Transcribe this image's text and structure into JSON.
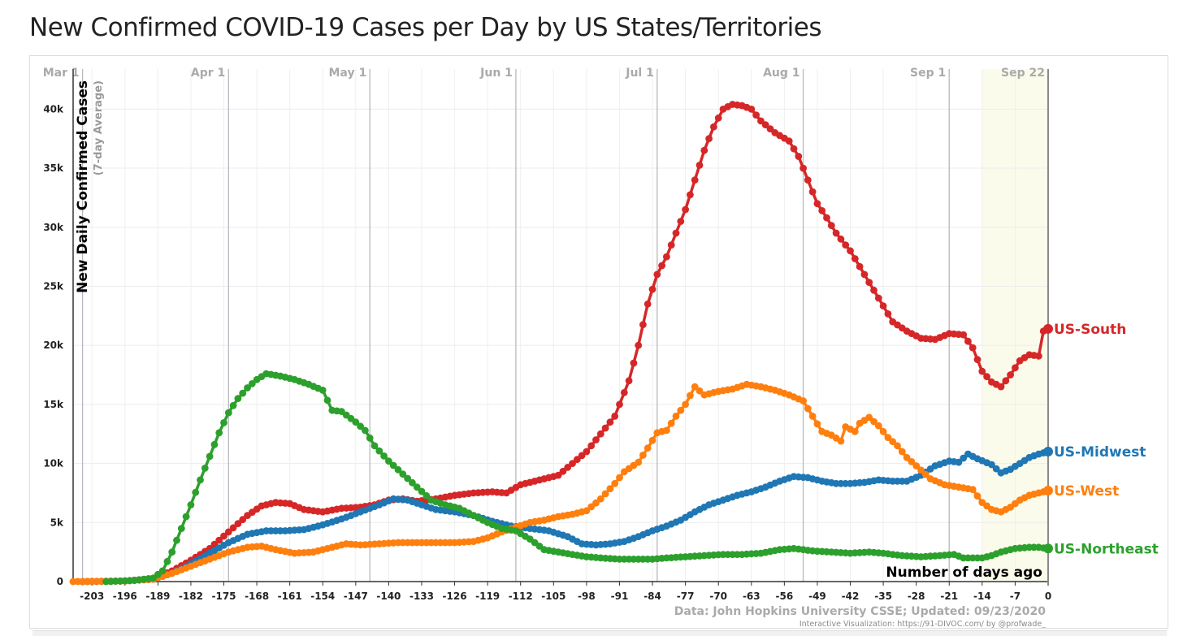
{
  "title": "New Confirmed COVID-19 Cases per Day by US States/Territories",
  "chart_data": {
    "type": "line",
    "ylabel": "New Daily Confirmed Cases",
    "ylabel_sub": "(7-day Average)",
    "xlabel": "Number of days ago",
    "xlim": [
      -207,
      0
    ],
    "ylim": [
      0,
      42500
    ],
    "grid": true,
    "x_ticks": [
      -203,
      -196,
      -189,
      -182,
      -175,
      -168,
      -161,
      -154,
      -147,
      -140,
      -133,
      -126,
      -119,
      -112,
      -105,
      -98,
      -91,
      -84,
      -77,
      -70,
      -63,
      -56,
      -49,
      -42,
      -35,
      -28,
      -21,
      -14,
      -7,
      0
    ],
    "y_ticks": [
      0,
      5000,
      10000,
      15000,
      20000,
      25000,
      30000,
      35000,
      40000
    ],
    "y_tick_labels": [
      "0",
      "5k",
      "10k",
      "15k",
      "20k",
      "25k",
      "30k",
      "35k",
      "40k"
    ],
    "date_markers": [
      {
        "label": "Mar 1",
        "x": -205
      },
      {
        "label": "Apr 1",
        "x": -174
      },
      {
        "label": "May 1",
        "x": -144
      },
      {
        "label": "Jun 1",
        "x": -113
      },
      {
        "label": "Jul 1",
        "x": -83
      },
      {
        "label": "Aug 1",
        "x": -52
      },
      {
        "label": "Sep 1",
        "x": -21
      },
      {
        "label": "Sep 22",
        "x": 0
      }
    ],
    "highlight_range": [
      -14,
      0
    ],
    "source_text": "Data: John Hopkins University CSSE; Updated: 09/23/2020",
    "credit_text": "Interactive Visualization: https://91-DIVOC.com/ by @profwade_",
    "series": [
      {
        "name": "US-South",
        "color": "#d62728",
        "points": [
          [
            -205,
            0
          ],
          [
            -196,
            50
          ],
          [
            -190,
            250
          ],
          [
            -186,
            900
          ],
          [
            -182,
            1800
          ],
          [
            -178,
            2800
          ],
          [
            -174,
            4200
          ],
          [
            -170,
            5600
          ],
          [
            -167,
            6400
          ],
          [
            -164,
            6700
          ],
          [
            -161,
            6600
          ],
          [
            -158,
            6100
          ],
          [
            -154,
            5900
          ],
          [
            -150,
            6200
          ],
          [
            -146,
            6300
          ],
          [
            -143,
            6500
          ],
          [
            -140,
            6900
          ],
          [
            -137,
            7000
          ],
          [
            -134,
            6800
          ],
          [
            -130,
            7000
          ],
          [
            -126,
            7300
          ],
          [
            -122,
            7500
          ],
          [
            -118,
            7600
          ],
          [
            -115,
            7500
          ],
          [
            -112,
            8200
          ],
          [
            -108,
            8600
          ],
          [
            -104,
            9000
          ],
          [
            -101,
            10000
          ],
          [
            -98,
            11000
          ],
          [
            -95,
            12500
          ],
          [
            -92,
            14000
          ],
          [
            -89,
            17000
          ],
          [
            -87,
            20000
          ],
          [
            -85,
            23500
          ],
          [
            -83,
            26000
          ],
          [
            -81,
            27500
          ],
          [
            -79,
            29500
          ],
          [
            -77,
            31500
          ],
          [
            -75,
            34000
          ],
          [
            -73,
            36500
          ],
          [
            -71,
            38500
          ],
          [
            -69,
            40000
          ],
          [
            -67,
            40400
          ],
          [
            -65,
            40300
          ],
          [
            -63,
            40000
          ],
          [
            -61,
            39000
          ],
          [
            -58,
            38000
          ],
          [
            -55,
            37300
          ],
          [
            -53,
            36000
          ],
          [
            -51,
            34000
          ],
          [
            -49,
            32000
          ],
          [
            -47,
            30800
          ],
          [
            -45,
            29500
          ],
          [
            -42,
            28000
          ],
          [
            -39,
            26000
          ],
          [
            -36,
            24000
          ],
          [
            -33,
            22000
          ],
          [
            -30,
            21200
          ],
          [
            -27,
            20600
          ],
          [
            -24,
            20500
          ],
          [
            -21,
            21000
          ],
          [
            -18,
            20900
          ],
          [
            -16,
            19800
          ],
          [
            -14,
            17800
          ],
          [
            -12,
            16900
          ],
          [
            -10,
            16500
          ],
          [
            -8,
            17500
          ],
          [
            -6,
            18700
          ],
          [
            -4,
            19200
          ],
          [
            -2,
            19100
          ],
          [
            -1,
            21200
          ],
          [
            0,
            21400
          ]
        ]
      },
      {
        "name": "US-Midwest",
        "color": "#1f77b4",
        "points": [
          [
            -205,
            0
          ],
          [
            -196,
            50
          ],
          [
            -190,
            200
          ],
          [
            -186,
            700
          ],
          [
            -182,
            1500
          ],
          [
            -178,
            2400
          ],
          [
            -174,
            3300
          ],
          [
            -170,
            4000
          ],
          [
            -166,
            4300
          ],
          [
            -162,
            4300
          ],
          [
            -158,
            4400
          ],
          [
            -154,
            4800
          ],
          [
            -150,
            5300
          ],
          [
            -146,
            5900
          ],
          [
            -142,
            6500
          ],
          [
            -139,
            7000
          ],
          [
            -136,
            6900
          ],
          [
            -133,
            6500
          ],
          [
            -130,
            6100
          ],
          [
            -126,
            5900
          ],
          [
            -122,
            5600
          ],
          [
            -118,
            5100
          ],
          [
            -114,
            4700
          ],
          [
            -110,
            4500
          ],
          [
            -106,
            4300
          ],
          [
            -102,
            3800
          ],
          [
            -99,
            3200
          ],
          [
            -96,
            3100
          ],
          [
            -93,
            3200
          ],
          [
            -90,
            3400
          ],
          [
            -87,
            3800
          ],
          [
            -84,
            4300
          ],
          [
            -81,
            4700
          ],
          [
            -78,
            5200
          ],
          [
            -75,
            5900
          ],
          [
            -72,
            6500
          ],
          [
            -69,
            6900
          ],
          [
            -66,
            7300
          ],
          [
            -63,
            7600
          ],
          [
            -60,
            8000
          ],
          [
            -57,
            8500
          ],
          [
            -54,
            8900
          ],
          [
            -51,
            8800
          ],
          [
            -48,
            8500
          ],
          [
            -45,
            8300
          ],
          [
            -42,
            8300
          ],
          [
            -39,
            8400
          ],
          [
            -36,
            8600
          ],
          [
            -33,
            8500
          ],
          [
            -30,
            8500
          ],
          [
            -27,
            9000
          ],
          [
            -24,
            9800
          ],
          [
            -21,
            10200
          ],
          [
            -19,
            10100
          ],
          [
            -17,
            10800
          ],
          [
            -15,
            10400
          ],
          [
            -12,
            9900
          ],
          [
            -10,
            9200
          ],
          [
            -8,
            9500
          ],
          [
            -6,
            10000
          ],
          [
            -4,
            10500
          ],
          [
            -2,
            10800
          ],
          [
            0,
            11000
          ]
        ]
      },
      {
        "name": "US-West",
        "color": "#ff7f0e",
        "points": [
          [
            -207,
            0
          ],
          [
            -196,
            50
          ],
          [
            -190,
            200
          ],
          [
            -186,
            700
          ],
          [
            -182,
            1300
          ],
          [
            -178,
            1900
          ],
          [
            -174,
            2500
          ],
          [
            -170,
            2900
          ],
          [
            -167,
            3000
          ],
          [
            -164,
            2700
          ],
          [
            -160,
            2400
          ],
          [
            -156,
            2500
          ],
          [
            -152,
            2900
          ],
          [
            -149,
            3200
          ],
          [
            -146,
            3100
          ],
          [
            -142,
            3200
          ],
          [
            -138,
            3300
          ],
          [
            -134,
            3300
          ],
          [
            -130,
            3300
          ],
          [
            -126,
            3300
          ],
          [
            -122,
            3400
          ],
          [
            -119,
            3700
          ],
          [
            -116,
            4200
          ],
          [
            -113,
            4600
          ],
          [
            -110,
            5000
          ],
          [
            -107,
            5200
          ],
          [
            -104,
            5500
          ],
          [
            -101,
            5700
          ],
          [
            -98,
            6000
          ],
          [
            -95,
            7000
          ],
          [
            -92,
            8300
          ],
          [
            -90,
            9300
          ],
          [
            -87,
            10100
          ],
          [
            -85,
            11300
          ],
          [
            -83,
            12600
          ],
          [
            -81,
            12800
          ],
          [
            -79,
            14000
          ],
          [
            -77,
            15000
          ],
          [
            -75,
            16500
          ],
          [
            -73,
            15800
          ],
          [
            -70,
            16100
          ],
          [
            -67,
            16300
          ],
          [
            -64,
            16700
          ],
          [
            -61,
            16500
          ],
          [
            -58,
            16200
          ],
          [
            -55,
            15800
          ],
          [
            -52,
            15300
          ],
          [
            -50,
            14000
          ],
          [
            -48,
            12700
          ],
          [
            -46,
            12400
          ],
          [
            -44,
            11900
          ],
          [
            -43,
            13100
          ],
          [
            -41,
            12700
          ],
          [
            -40,
            13400
          ],
          [
            -38,
            13900
          ],
          [
            -36,
            13200
          ],
          [
            -34,
            12200
          ],
          [
            -32,
            11500
          ],
          [
            -30,
            10500
          ],
          [
            -28,
            9800
          ],
          [
            -25,
            8700
          ],
          [
            -22,
            8200
          ],
          [
            -19,
            8000
          ],
          [
            -16,
            7800
          ],
          [
            -14,
            6700
          ],
          [
            -12,
            6100
          ],
          [
            -10,
            5900
          ],
          [
            -8,
            6300
          ],
          [
            -6,
            6900
          ],
          [
            -4,
            7300
          ],
          [
            -2,
            7500
          ],
          [
            0,
            7700
          ]
        ]
      },
      {
        "name": "US-Northeast",
        "color": "#2ca02c",
        "points": [
          [
            -200,
            0
          ],
          [
            -194,
            100
          ],
          [
            -190,
            300
          ],
          [
            -188,
            900
          ],
          [
            -186,
            2500
          ],
          [
            -184,
            4500
          ],
          [
            -182,
            6500
          ],
          [
            -180,
            8600
          ],
          [
            -178,
            10600
          ],
          [
            -176,
            12600
          ],
          [
            -174,
            14300
          ],
          [
            -172,
            15500
          ],
          [
            -170,
            16400
          ],
          [
            -168,
            17100
          ],
          [
            -166,
            17600
          ],
          [
            -163,
            17400
          ],
          [
            -160,
            17100
          ],
          [
            -157,
            16700
          ],
          [
            -154,
            16200
          ],
          [
            -152,
            14500
          ],
          [
            -150,
            14400
          ],
          [
            -147,
            13500
          ],
          [
            -145,
            12800
          ],
          [
            -143,
            11500
          ],
          [
            -140,
            10200
          ],
          [
            -137,
            9100
          ],
          [
            -134,
            8000
          ],
          [
            -131,
            6900
          ],
          [
            -128,
            6500
          ],
          [
            -125,
            6200
          ],
          [
            -122,
            5600
          ],
          [
            -119,
            5000
          ],
          [
            -116,
            4500
          ],
          [
            -113,
            4300
          ],
          [
            -110,
            3600
          ],
          [
            -107,
            2700
          ],
          [
            -104,
            2500
          ],
          [
            -101,
            2300
          ],
          [
            -98,
            2100
          ],
          [
            -95,
            2000
          ],
          [
            -91,
            1900
          ],
          [
            -87,
            1900
          ],
          [
            -84,
            1900
          ],
          [
            -81,
            2000
          ],
          [
            -77,
            2100
          ],
          [
            -73,
            2200
          ],
          [
            -69,
            2300
          ],
          [
            -65,
            2300
          ],
          [
            -61,
            2400
          ],
          [
            -57,
            2700
          ],
          [
            -54,
            2800
          ],
          [
            -50,
            2600
          ],
          [
            -46,
            2500
          ],
          [
            -42,
            2400
          ],
          [
            -38,
            2500
          ],
          [
            -35,
            2400
          ],
          [
            -31,
            2200
          ],
          [
            -27,
            2100
          ],
          [
            -23,
            2200
          ],
          [
            -20,
            2300
          ],
          [
            -18,
            2000
          ],
          [
            -14,
            2000
          ],
          [
            -12,
            2200
          ],
          [
            -10,
            2500
          ],
          [
            -7,
            2800
          ],
          [
            -4,
            2900
          ],
          [
            -2,
            2900
          ],
          [
            0,
            2800
          ]
        ]
      }
    ]
  }
}
